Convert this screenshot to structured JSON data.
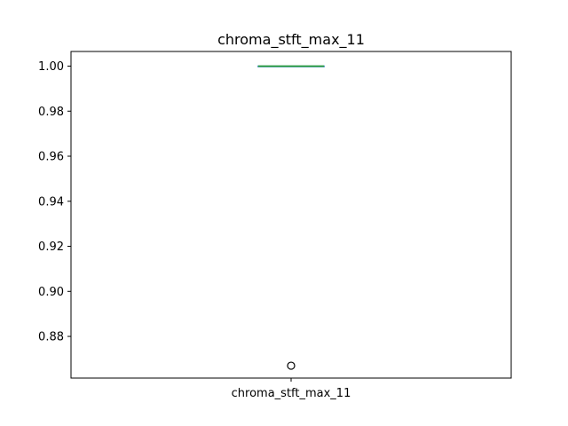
{
  "chart_data": {
    "type": "box",
    "title": "chroma_stft_max_11",
    "xlabel": "",
    "ylabel": "",
    "categories": [
      "chroma_stft_max_11"
    ],
    "ylim": [
      0.8615,
      1.0065
    ],
    "yticks": [
      0.88,
      0.9,
      0.92,
      0.94,
      0.96,
      0.98,
      1.0
    ],
    "ytick_labels": [
      "0.88",
      "0.90",
      "0.92",
      "0.94",
      "0.96",
      "0.98",
      "1.00"
    ],
    "series": [
      {
        "category": "chroma_stft_max_11",
        "whisker_low": 1.0,
        "q1": 1.0,
        "median": 1.0,
        "q3": 1.0,
        "whisker_high": 1.0,
        "outliers": [
          0.867
        ]
      }
    ],
    "grid": false,
    "legend": "none",
    "colors": {
      "box": "#1f77b4",
      "median": "#2ca02c",
      "whisker": "#000000",
      "outlier_edge": "#000000",
      "axes": "#000000"
    }
  }
}
